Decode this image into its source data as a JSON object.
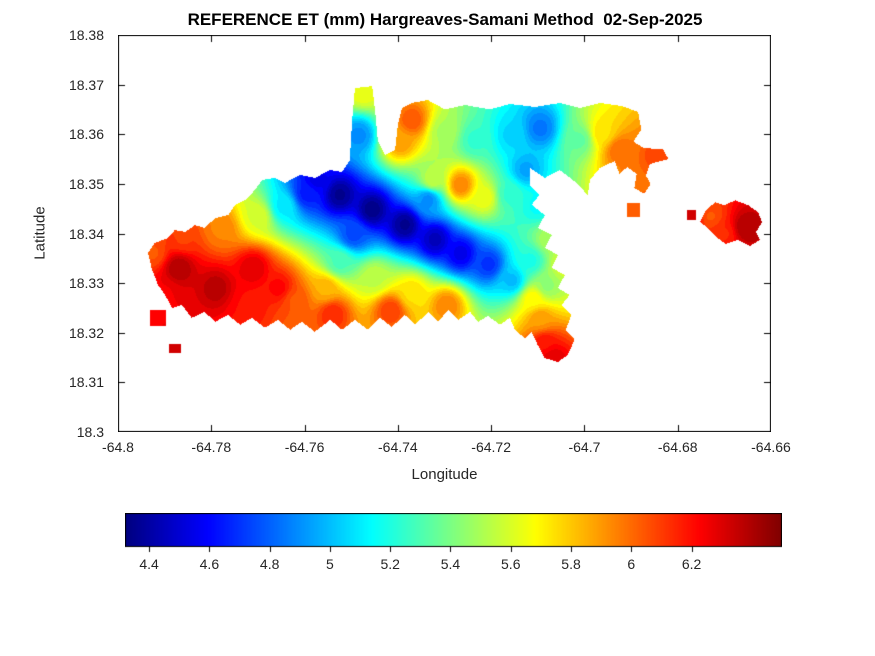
{
  "chart_data": {
    "type": "heatmap",
    "title": "REFERENCE ET (mm) Hargreaves-Samani Method  02-Sep-2025",
    "xlabel": "Longitude",
    "ylabel": "Latitude",
    "xlim": [
      -64.8,
      -64.66
    ],
    "ylim": [
      18.3,
      18.38
    ],
    "grid": false,
    "colormap": "jet",
    "units": "mm",
    "contour_bands": 44,
    "x_ticks": [
      {
        "v": -64.8,
        "label": "-64.8"
      },
      {
        "v": -64.78,
        "label": "-64.78"
      },
      {
        "v": -64.76,
        "label": "-64.76"
      },
      {
        "v": -64.74,
        "label": "-64.74"
      },
      {
        "v": -64.72,
        "label": "-64.72"
      },
      {
        "v": -64.7,
        "label": "-64.7"
      },
      {
        "v": -64.68,
        "label": "-64.68"
      },
      {
        "v": -64.66,
        "label": "-64.66"
      }
    ],
    "y_ticks": [
      {
        "v": 18.38,
        "label": "18.38"
      },
      {
        "v": 18.37,
        "label": "18.37"
      },
      {
        "v": 18.36,
        "label": "18.36"
      },
      {
        "v": 18.35,
        "label": "18.35"
      },
      {
        "v": 18.34,
        "label": "18.34"
      },
      {
        "v": 18.33,
        "label": "18.33"
      },
      {
        "v": 18.32,
        "label": "18.32"
      },
      {
        "v": 18.31,
        "label": "18.31"
      },
      {
        "v": 18.3,
        "label": "18.3"
      }
    ],
    "colorbar": {
      "orientation": "horizontal",
      "min": 4.32,
      "max": 6.5,
      "ticks": [
        {
          "v": 4.4,
          "label": "4.4"
        },
        {
          "v": 4.6,
          "label": "4.6"
        },
        {
          "v": 4.8,
          "label": "4.8"
        },
        {
          "v": 5,
          "label": "5"
        },
        {
          "v": 5.2,
          "label": "5.2"
        },
        {
          "v": 5.4,
          "label": "5.4"
        },
        {
          "v": 5.6,
          "label": "5.6"
        },
        {
          "v": 5.8,
          "label": "5.8"
        },
        {
          "v": 6,
          "label": "6"
        },
        {
          "v": 6.2,
          "label": "6.2"
        }
      ]
    },
    "island_polygons": [
      {
        "name": "st-thomas-main",
        "points": [
          [
            -64.7936,
            18.3361
          ],
          [
            -64.7921,
            18.3381
          ],
          [
            -64.7893,
            18.3391
          ],
          [
            -64.7878,
            18.3407
          ],
          [
            -64.7856,
            18.3403
          ],
          [
            -64.7835,
            18.3417
          ],
          [
            -64.7814,
            18.3411
          ],
          [
            -64.7792,
            18.3431
          ],
          [
            -64.7764,
            18.3437
          ],
          [
            -64.7749,
            18.3457
          ],
          [
            -64.7728,
            18.3467
          ],
          [
            -64.7706,
            18.3488
          ],
          [
            -64.7691,
            18.3508
          ],
          [
            -64.7663,
            18.3512
          ],
          [
            -64.7642,
            18.3502
          ],
          [
            -64.761,
            18.3518
          ],
          [
            -64.7578,
            18.3512
          ],
          [
            -64.7545,
            18.3528
          ],
          [
            -64.752,
            18.3524
          ],
          [
            -64.7503,
            18.3548
          ],
          [
            -64.7498,
            18.3629
          ],
          [
            -64.7492,
            18.3693
          ],
          [
            -64.7455,
            18.3697
          ],
          [
            -64.7449,
            18.3649
          ],
          [
            -64.7443,
            18.3588
          ],
          [
            -64.7428,
            18.3558
          ],
          [
            -64.7406,
            18.3568
          ],
          [
            -64.74,
            18.3619
          ],
          [
            -64.7391,
            18.3653
          ],
          [
            -64.737,
            18.3663
          ],
          [
            -64.7336,
            18.3669
          ],
          [
            -64.7299,
            18.365
          ],
          [
            -64.7256,
            18.3659
          ],
          [
            -64.7203,
            18.365
          ],
          [
            -64.716,
            18.3661
          ],
          [
            -64.7106,
            18.3655
          ],
          [
            -64.7053,
            18.3663
          ],
          [
            -64.701,
            18.3653
          ],
          [
            -64.6967,
            18.3663
          ],
          [
            -64.692,
            18.3657
          ],
          [
            -64.6885,
            18.3645
          ],
          [
            -64.6878,
            18.361
          ],
          [
            -64.6895,
            18.3585
          ],
          [
            -64.6872,
            18.3572
          ],
          [
            -64.6832,
            18.357
          ],
          [
            -64.682,
            18.355
          ],
          [
            -64.686,
            18.354
          ],
          [
            -64.6868,
            18.3516
          ],
          [
            -64.6858,
            18.35
          ],
          [
            -64.6872,
            18.348
          ],
          [
            -64.6893,
            18.3492
          ],
          [
            -64.6888,
            18.352
          ],
          [
            -64.6908,
            18.3534
          ],
          [
            -64.6925,
            18.352
          ],
          [
            -64.6935,
            18.3546
          ],
          [
            -64.6967,
            18.3532
          ],
          [
            -64.6988,
            18.3508
          ],
          [
            -64.6993,
            18.3478
          ],
          [
            -64.7021,
            18.3505
          ],
          [
            -64.7053,
            18.3528
          ],
          [
            -64.7085,
            18.3512
          ],
          [
            -64.7117,
            18.3532
          ],
          [
            -64.7117,
            18.3498
          ],
          [
            -64.7096,
            18.3478
          ],
          [
            -64.7113,
            18.3458
          ],
          [
            -64.7085,
            18.3437
          ],
          [
            -64.71,
            18.3411
          ],
          [
            -64.707,
            18.3397
          ],
          [
            -64.7085,
            18.3371
          ],
          [
            -64.7057,
            18.3357
          ],
          [
            -64.707,
            18.3331
          ],
          [
            -64.7042,
            18.3316
          ],
          [
            -64.7057,
            18.329
          ],
          [
            -64.7032,
            18.3276
          ],
          [
            -64.7049,
            18.3256
          ],
          [
            -64.7028,
            18.3236
          ],
          [
            -64.704,
            18.3206
          ],
          [
            -64.7021,
            18.3186
          ],
          [
            -64.7036,
            18.3155
          ],
          [
            -64.7057,
            18.3141
          ],
          [
            -64.7085,
            18.3149
          ],
          [
            -64.71,
            18.3175
          ],
          [
            -64.7113,
            18.3201
          ],
          [
            -64.7128,
            18.3189
          ],
          [
            -64.7149,
            18.3206
          ],
          [
            -64.716,
            18.323
          ],
          [
            -64.7181,
            18.3216
          ],
          [
            -64.7207,
            18.3234
          ],
          [
            -64.7228,
            18.3222
          ],
          [
            -64.7245,
            18.3242
          ],
          [
            -64.7271,
            18.3226
          ],
          [
            -64.7292,
            18.3246
          ],
          [
            -64.7314,
            18.3222
          ],
          [
            -64.7335,
            18.3242
          ],
          [
            -64.7363,
            18.3216
          ],
          [
            -64.7385,
            18.3236
          ],
          [
            -64.7413,
            18.3212
          ],
          [
            -64.7438,
            18.323
          ],
          [
            -64.7464,
            18.3206
          ],
          [
            -64.7492,
            18.3226
          ],
          [
            -64.752,
            18.3206
          ],
          [
            -64.7545,
            18.3226
          ],
          [
            -64.7578,
            18.3202
          ],
          [
            -64.7606,
            18.3222
          ],
          [
            -64.7631,
            18.3206
          ],
          [
            -64.7657,
            18.3226
          ],
          [
            -64.7685,
            18.321
          ],
          [
            -64.7713,
            18.323
          ],
          [
            -64.7738,
            18.3216
          ],
          [
            -64.7764,
            18.3236
          ],
          [
            -64.7792,
            18.3222
          ],
          [
            -64.7814,
            18.3242
          ],
          [
            -64.7842,
            18.323
          ],
          [
            -64.7863,
            18.3256
          ],
          [
            -64.7884,
            18.325
          ],
          [
            -64.7899,
            18.3276
          ],
          [
            -64.7914,
            18.3296
          ],
          [
            -64.7927,
            18.3327
          ]
        ]
      },
      {
        "name": "east-island",
        "points": [
          [
            -64.6752,
            18.3423
          ],
          [
            -64.6739,
            18.3447
          ],
          [
            -64.672,
            18.3463
          ],
          [
            -64.6699,
            18.3457
          ],
          [
            -64.6677,
            18.3467
          ],
          [
            -64.6649,
            18.3457
          ],
          [
            -64.6628,
            18.3443
          ],
          [
            -64.6619,
            18.3423
          ],
          [
            -64.6632,
            18.3403
          ],
          [
            -64.6624,
            18.3387
          ],
          [
            -64.6645,
            18.3375
          ],
          [
            -64.6671,
            18.3387
          ],
          [
            -64.6697,
            18.3379
          ],
          [
            -64.672,
            18.3395
          ],
          [
            -64.6735,
            18.3411
          ]
        ]
      },
      {
        "name": "cay-east-1",
        "points": [
          [
            -64.6908,
            18.3462
          ],
          [
            -64.688,
            18.3462
          ],
          [
            -64.688,
            18.3434
          ],
          [
            -64.6908,
            18.3434
          ]
        ]
      },
      {
        "name": "cay-east-2",
        "points": [
          [
            -64.678,
            18.3447
          ],
          [
            -64.676,
            18.3447
          ],
          [
            -64.676,
            18.3428
          ],
          [
            -64.678,
            18.3428
          ]
        ]
      },
      {
        "name": "cay-west-1",
        "points": [
          [
            -64.7932,
            18.3246
          ],
          [
            -64.7898,
            18.3246
          ],
          [
            -64.7898,
            18.3214
          ],
          [
            -64.7932,
            18.3214
          ]
        ]
      },
      {
        "name": "cay-west-2",
        "points": [
          [
            -64.789,
            18.3177
          ],
          [
            -64.7864,
            18.3177
          ],
          [
            -64.7864,
            18.3159
          ],
          [
            -64.789,
            18.3159
          ]
        ]
      }
    ],
    "et_samples": [
      [
        -64.787,
        18.333,
        6.4
      ],
      [
        -64.779,
        18.329,
        6.38
      ],
      [
        -64.771,
        18.333,
        6.3
      ],
      [
        -64.79,
        18.328,
        6.25
      ],
      [
        -64.7655,
        18.329,
        6.22
      ],
      [
        -64.7925,
        18.336,
        6.05
      ],
      [
        -64.786,
        18.339,
        6.1
      ],
      [
        -64.778,
        18.341,
        5.95
      ],
      [
        -64.77,
        18.3435,
        5.6
      ],
      [
        -64.7645,
        18.3455,
        5.1
      ],
      [
        -64.7595,
        18.348,
        4.65
      ],
      [
        -64.7575,
        18.3508,
        4.55
      ],
      [
        -64.7525,
        18.3478,
        4.36
      ],
      [
        -64.7455,
        18.3448,
        4.34
      ],
      [
        -64.7385,
        18.3418,
        4.36
      ],
      [
        -64.732,
        18.3388,
        4.45
      ],
      [
        -64.7265,
        18.336,
        4.55
      ],
      [
        -64.7495,
        18.3398,
        4.75
      ],
      [
        -64.7525,
        18.3342,
        5.3
      ],
      [
        -64.745,
        18.331,
        5.55
      ],
      [
        -64.737,
        18.328,
        5.75
      ],
      [
        -64.7555,
        18.3288,
        5.85
      ],
      [
        -64.754,
        18.3238,
        6.15
      ],
      [
        -64.7415,
        18.3245,
        6.1
      ],
      [
        -64.7295,
        18.3255,
        5.95
      ],
      [
        -64.762,
        18.3265,
        6.05
      ],
      [
        -64.772,
        18.3255,
        6.2
      ],
      [
        -64.7205,
        18.3338,
        4.7
      ],
      [
        -64.7155,
        18.3305,
        5.0
      ],
      [
        -64.7115,
        18.3345,
        5.2
      ],
      [
        -64.7075,
        18.3388,
        5.5
      ],
      [
        -64.7045,
        18.3338,
        5.6
      ],
      [
        -64.708,
        18.3295,
        5.45
      ],
      [
        -64.711,
        18.3268,
        5.7
      ],
      [
        -64.7095,
        18.3228,
        5.9
      ],
      [
        -64.7085,
        18.3178,
        6.2
      ],
      [
        -64.7068,
        18.3148,
        6.3
      ],
      [
        -64.7265,
        18.3498,
        5.95
      ],
      [
        -64.7325,
        18.3508,
        5.55
      ],
      [
        -64.7215,
        18.3472,
        5.65
      ],
      [
        -64.7335,
        18.3468,
        4.9
      ],
      [
        -64.716,
        18.3478,
        5.25
      ],
      [
        -64.7125,
        18.3528,
        4.95
      ],
      [
        -64.71,
        18.3455,
        5.15
      ],
      [
        -64.737,
        18.3628,
        6.05
      ],
      [
        -64.7395,
        18.3585,
        5.9
      ],
      [
        -64.73,
        18.3605,
        5.5
      ],
      [
        -64.7235,
        18.3588,
        5.25
      ],
      [
        -64.7155,
        18.3598,
        5.05
      ],
      [
        -64.7095,
        18.3612,
        4.85
      ],
      [
        -64.701,
        18.3588,
        5.35
      ],
      [
        -64.696,
        18.3602,
        5.75
      ],
      [
        -64.6925,
        18.3568,
        6.0
      ],
      [
        -64.7475,
        18.3688,
        5.65
      ],
      [
        -64.7483,
        18.3598,
        4.9
      ],
      [
        -64.684,
        18.3555,
        6.1
      ],
      [
        -64.6893,
        18.3448,
        6.05
      ],
      [
        -64.6885,
        18.3505,
        6.0
      ],
      [
        -64.677,
        18.3438,
        6.35
      ],
      [
        -64.673,
        18.3435,
        6.05
      ],
      [
        -64.67,
        18.34,
        6.15
      ],
      [
        -64.6655,
        18.3412,
        6.4
      ],
      [
        -64.7916,
        18.323,
        6.25
      ],
      [
        -64.7878,
        18.3168,
        6.35
      ]
    ]
  }
}
